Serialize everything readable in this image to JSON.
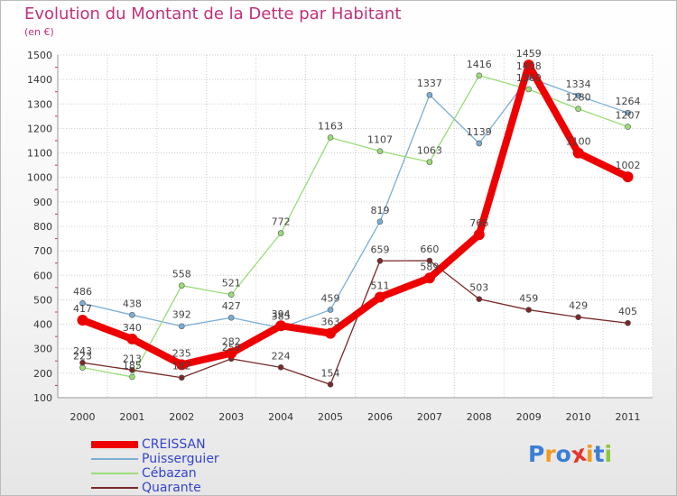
{
  "chart_data": {
    "type": "line",
    "title": "Evolution du Montant de la Dette par Habitant",
    "unit_label": "(en €)",
    "x": [
      "2000",
      "2001",
      "2002",
      "2003",
      "2004",
      "2005",
      "2006",
      "2007",
      "2008",
      "2009",
      "2010",
      "2011"
    ],
    "ylim": [
      100,
      1500
    ],
    "yticks": [
      100,
      200,
      300,
      400,
      500,
      600,
      700,
      800,
      900,
      1000,
      1100,
      1200,
      1300,
      1400,
      1500
    ],
    "grid": true,
    "legend_position": "bottom-left",
    "series": [
      {
        "name": "CREISSAN",
        "color": "#ee0000",
        "values": [
          417,
          340,
          235,
          282,
          394,
          363,
          511,
          589,
          766,
          1459,
          1100,
          1002
        ]
      },
      {
        "name": "Puisserguier",
        "color": "#7aaed6",
        "values": [
          486,
          438,
          392,
          427,
          385,
          459,
          819,
          1337,
          1139,
          1408,
          1334,
          1264
        ]
      },
      {
        "name": "Cébazan",
        "color": "#99dd77",
        "values": [
          223,
          185,
          558,
          521,
          772,
          1163,
          1107,
          1063,
          1416,
          1360,
          1280,
          1207
        ]
      },
      {
        "name": "Quarante",
        "color": "#7a2828",
        "values": [
          243,
          213,
          182,
          259,
          224,
          154,
          659,
          660,
          503,
          459,
          429,
          405
        ]
      }
    ]
  },
  "brand": {
    "letters": [
      "P",
      "r",
      "o",
      "x",
      "i",
      "t",
      "i"
    ],
    "colors": [
      "#3a7fd5",
      "#f39a1e",
      "#3a7fd5",
      "#e8342a",
      "#f39a1e",
      "#3a7fd5",
      "#8cc63f"
    ]
  }
}
